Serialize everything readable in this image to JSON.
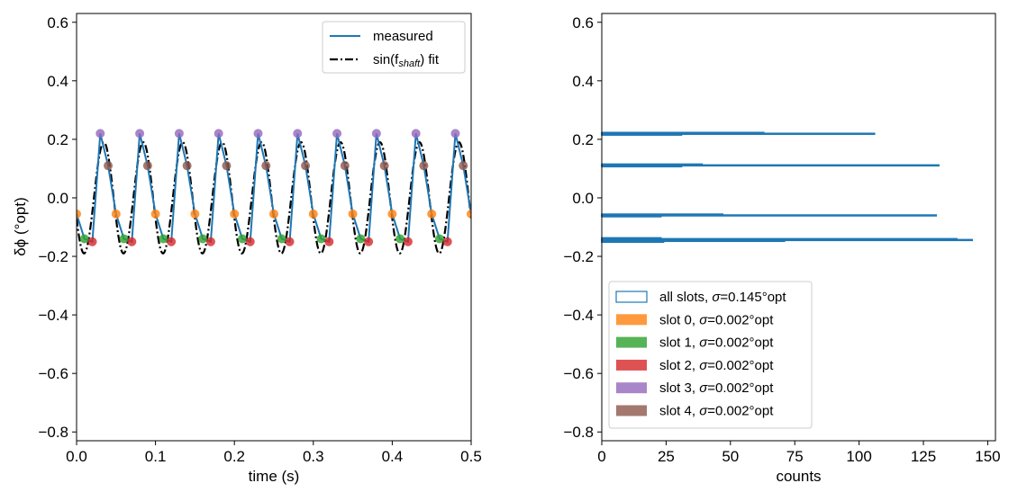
{
  "chart_data": [
    {
      "type": "line",
      "xlabel": "time (s)",
      "ylabel": "δϕ (°opt)",
      "xlim": [
        0.0,
        0.5
      ],
      "ylim": [
        -0.83,
        0.63
      ],
      "xticks": [
        "0.0",
        "0.1",
        "0.2",
        "0.3",
        "0.4",
        "0.5"
      ],
      "yticks": [
        "−0.8",
        "−0.6",
        "−0.4",
        "−0.2",
        "0.0",
        "0.2",
        "0.4",
        "0.6"
      ],
      "grid": false,
      "legend_placement": "top-right",
      "legend": [
        {
          "label": "measured",
          "style": "solid",
          "color": "#1f77b4"
        },
        {
          "label": "sin(f",
          "sub": "shaft",
          "suffix": ") fit",
          "style": "dash-dot",
          "color": "#000000"
        }
      ],
      "fit": {
        "amplitude": 0.19,
        "frequency_hz": 20,
        "peak_time_s": 0.0345,
        "offset": 0.0
      },
      "slots": [
        {
          "slot": 0,
          "color": "#ff7f0e",
          "t0": 0.0,
          "y": -0.055
        },
        {
          "slot": 1,
          "color": "#2ca02c",
          "t0": 0.01,
          "y": -0.14
        },
        {
          "slot": 2,
          "color": "#d62728",
          "t0": 0.02,
          "y": -0.15
        },
        {
          "slot": 3,
          "color": "#9467bd",
          "t0": 0.03,
          "y": 0.22
        },
        {
          "slot": 4,
          "color": "#8c564b",
          "t0": 0.04,
          "y": 0.11
        }
      ],
      "period_s": 0.05
    },
    {
      "type": "bar",
      "orientation": "horizontal histogram",
      "xlabel": "counts",
      "xlim": [
        0,
        153
      ],
      "ylim": [
        -0.83,
        0.63
      ],
      "xticks": [
        "0",
        "25",
        "50",
        "75",
        "100",
        "125",
        "150"
      ],
      "yticks": [
        "−0.8",
        "−0.6",
        "−0.4",
        "−0.2",
        "0.0",
        "0.2",
        "0.4",
        "0.6"
      ],
      "bin_width": 0.003,
      "legend_placement": "lower-left",
      "series": [
        {
          "name": "all slots, σ=0.145°opt",
          "label": "all slots, ",
          "sigma": "=0.145°opt",
          "color": "#1f77b4",
          "style": "step",
          "bins": [
            [
              0.222,
              63
            ],
            [
              0.219,
              106
            ],
            [
              0.216,
              31
            ],
            [
              0.114,
              39
            ],
            [
              0.111,
              131
            ],
            [
              0.108,
              31
            ],
            [
              -0.057,
              47
            ],
            [
              -0.06,
              130
            ],
            [
              -0.063,
              23
            ],
            [
              -0.138,
              23
            ],
            [
              -0.141,
              138
            ],
            [
              -0.144,
              144
            ],
            [
              -0.147,
              71
            ],
            [
              -0.15,
              24
            ]
          ]
        },
        {
          "name": "slot 0, σ=0.002°opt",
          "label": "slot 0, ",
          "sigma": "=0.002°opt",
          "color": "#ff7f0e",
          "bins": [
            [
              -0.057,
              20
            ],
            [
              -0.06,
              23
            ]
          ]
        },
        {
          "name": "slot 1, σ=0.002°opt",
          "label": "slot 1, ",
          "sigma": "=0.002°opt",
          "color": "#2ca02c",
          "bins": [
            [
              -0.138,
              23
            ],
            [
              -0.141,
              23
            ]
          ]
        },
        {
          "name": "slot 2, σ=0.002°opt",
          "label": "slot 2, ",
          "sigma": "=0.002°opt",
          "color": "#d62728",
          "bins": [
            [
              -0.144,
              8
            ],
            [
              -0.147,
              71
            ],
            [
              -0.15,
              24
            ]
          ]
        },
        {
          "name": "slot 3, σ=0.002°opt",
          "label": "slot 3, ",
          "sigma": "=0.002°opt",
          "color": "#9467bd",
          "bins": [
            [
              0.222,
              20
            ],
            [
              0.219,
              31
            ]
          ]
        },
        {
          "name": "slot 4, σ=0.002°opt",
          "label": "slot 4, ",
          "sigma": "=0.002°opt",
          "color": "#8c564b",
          "bins": [
            [
              0.114,
              20
            ],
            [
              0.111,
              31
            ]
          ]
        }
      ]
    }
  ]
}
